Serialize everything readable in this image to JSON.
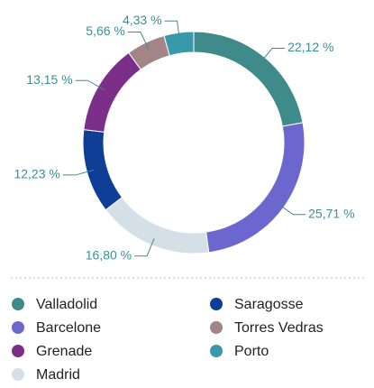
{
  "chart_data": {
    "type": "donut",
    "categories": [
      "Valladolid",
      "Barcelone",
      "Madrid",
      "Saragosse",
      "Grenade",
      "Torres Vedras",
      "Porto"
    ],
    "values": [
      22.12,
      25.71,
      16.8,
      12.23,
      13.15,
      5.66,
      4.33
    ],
    "value_labels": [
      "22,12 %",
      "25,71 %",
      "16,80 %",
      "12,23 %",
      "13,15 %",
      "5,66 %",
      "4,33 %"
    ],
    "colors": [
      "#3f8a8b",
      "#6b67cf",
      "#d5dfe6",
      "#0f3e97",
      "#7b2f89",
      "#a38487",
      "#3a98ac"
    ]
  }
}
